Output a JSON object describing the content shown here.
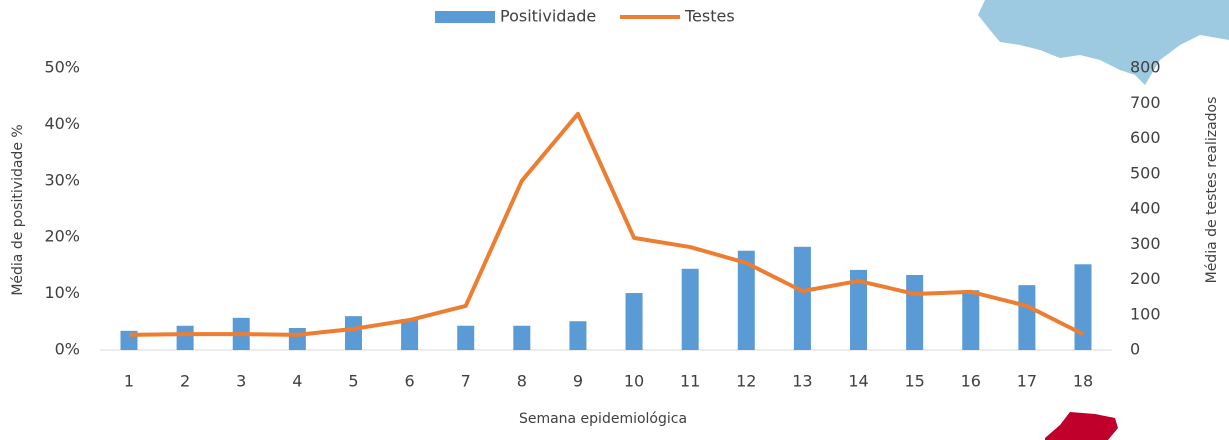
{
  "chart_data": {
    "type": "bar_line",
    "x_label": "Semana epidemiológica",
    "y_label": "Média de positividade %",
    "y2_label": "Média de testes realizados",
    "categories": [
      "1",
      "2",
      "3",
      "4",
      "5",
      "6",
      "7",
      "8",
      "9",
      "10",
      "11",
      "12",
      "13",
      "14",
      "15",
      "16",
      "17",
      "18"
    ],
    "series": [
      {
        "name": "Positividade",
        "type": "bar",
        "color": "#5b9bd5",
        "values": [
          3.4,
          4.3,
          5.7,
          3.9,
          6.0,
          5.5,
          4.3,
          4.3,
          5.1,
          10.1,
          14.4,
          17.6,
          18.3,
          14.2,
          13.3,
          10.6,
          11.5,
          15.2
        ]
      },
      {
        "name": "Testes",
        "type": "line",
        "axis": "y2",
        "color": "#ed7d31",
        "values": [
          43,
          45,
          45,
          43,
          60,
          85,
          125,
          480,
          670,
          318,
          292,
          247,
          167,
          196,
          159,
          165,
          125,
          45
        ]
      }
    ],
    "ylim": [
      0,
      50
    ],
    "yticks": [
      {
        "value": 0,
        "label": "0%"
      },
      {
        "value": 10,
        "label": "10%"
      },
      {
        "value": 20,
        "label": "20%"
      },
      {
        "value": 30,
        "label": "30%"
      },
      {
        "value": 40,
        "label": "40%"
      },
      {
        "value": 50,
        "label": "50%"
      }
    ],
    "y2lim": [
      0,
      800
    ],
    "y2ticks": [
      0,
      100,
      200,
      300,
      400,
      500,
      600,
      700,
      800
    ],
    "grid": false
  }
}
